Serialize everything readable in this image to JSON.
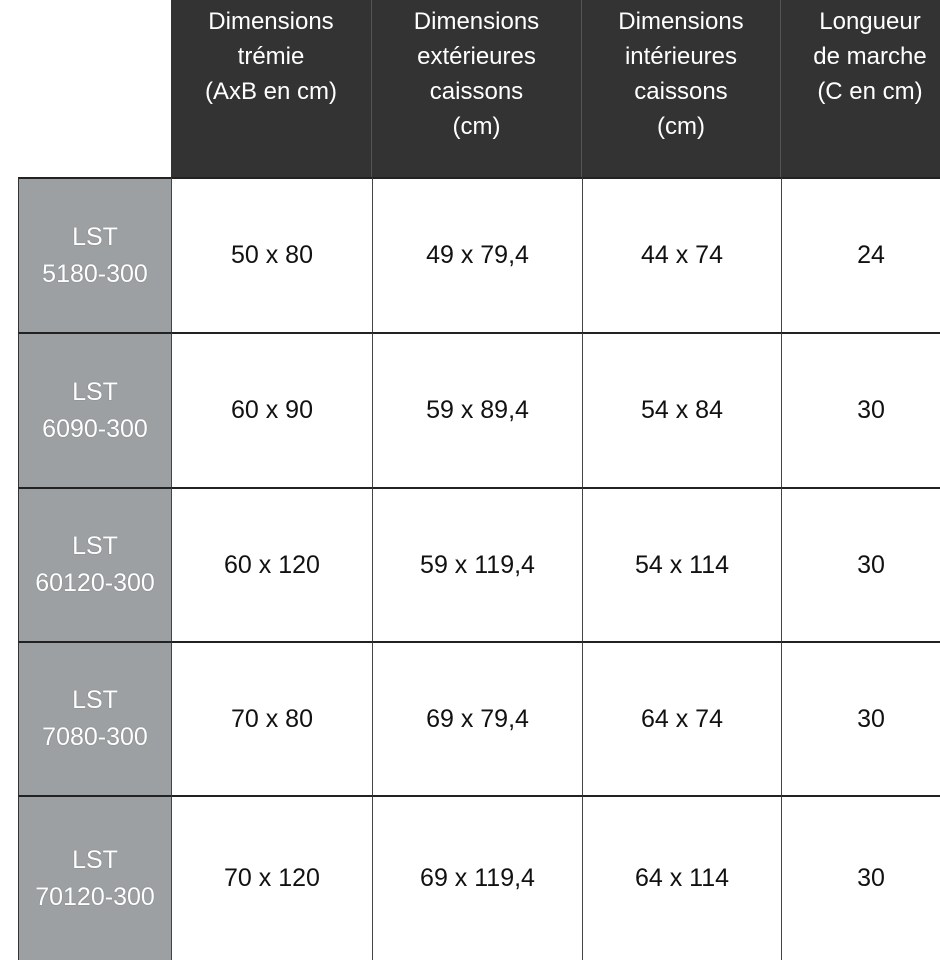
{
  "columns": [
    "Dimensions\ntrémie\n(AxB en cm)",
    "Dimensions\nextérieures\ncaissons\n(cm)",
    "Dimensions\nintérieures\ncaissons\n(cm)",
    "Longueur\nde marche\n(C en cm)"
  ],
  "rows": [
    {
      "model": "LST\n5180-300",
      "cells": [
        "50 x 80",
        "49 x 79,4",
        "44 x 74",
        "24"
      ]
    },
    {
      "model": "LST\n6090-300",
      "cells": [
        "60 x 90",
        "59 x 89,4",
        "54 x 84",
        "30"
      ]
    },
    {
      "model": "LST\n60120-300",
      "cells": [
        "60 x 120",
        "59 x 119,4",
        "54 x 114",
        "30"
      ]
    },
    {
      "model": "LST\n7080-300",
      "cells": [
        "70 x 80",
        "69 x 79,4",
        "64 x 74",
        "30"
      ]
    },
    {
      "model": "LST\n70120-300",
      "cells": [
        "70 x 120",
        "69 x 119,4",
        "64 x 114",
        "30"
      ]
    }
  ],
  "colors": {
    "header_bg": "#333334",
    "row_header_bg": "#9ca0a2"
  }
}
